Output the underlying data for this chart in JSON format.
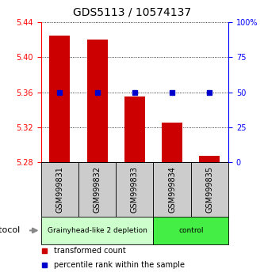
{
  "title": "GDS5113 / 10574137",
  "samples": [
    "GSM999831",
    "GSM999832",
    "GSM999833",
    "GSM999834",
    "GSM999835"
  ],
  "bar_values": [
    5.425,
    5.42,
    5.355,
    5.325,
    5.287
  ],
  "bar_baseline": 5.28,
  "percentile_right": [
    50,
    50,
    50,
    50,
    50
  ],
  "ylim_left": [
    5.28,
    5.44
  ],
  "ylim_right": [
    0,
    100
  ],
  "yticks_left": [
    5.28,
    5.32,
    5.36,
    5.4,
    5.44
  ],
  "yticks_right": [
    0,
    25,
    50,
    75,
    100
  ],
  "ytick_labels_right": [
    "0",
    "25",
    "50",
    "75",
    "100%"
  ],
  "bar_color": "#CC0000",
  "blue_color": "#0000CC",
  "groups": [
    {
      "label": "Grainyhead-like 2 depletion",
      "indices": [
        0,
        1,
        2
      ],
      "color": "#ccffcc"
    },
    {
      "label": "control",
      "indices": [
        3,
        4
      ],
      "color": "#44ee44"
    }
  ],
  "protocol_label": "protocol",
  "legend_bar_label": "transformed count",
  "legend_dot_label": "percentile rank within the sample",
  "title_fontsize": 10,
  "tick_fontsize": 7,
  "sample_label_fontsize": 7,
  "group_label_fontsize": 6.5,
  "legend_fontsize": 7,
  "protocol_fontsize": 8
}
